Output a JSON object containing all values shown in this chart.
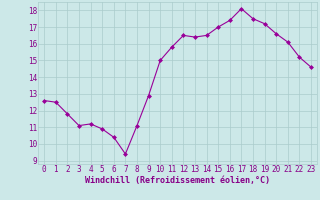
{
  "x": [
    0,
    1,
    2,
    3,
    4,
    5,
    6,
    7,
    8,
    9,
    10,
    11,
    12,
    13,
    14,
    15,
    16,
    17,
    18,
    19,
    20,
    21,
    22,
    23
  ],
  "y": [
    12.6,
    12.5,
    11.8,
    11.1,
    11.2,
    10.9,
    10.4,
    9.4,
    11.1,
    12.9,
    15.0,
    15.8,
    16.5,
    16.4,
    16.5,
    17.0,
    17.4,
    18.1,
    17.5,
    17.2,
    16.6,
    16.1,
    15.2,
    14.6
  ],
  "line_color": "#990099",
  "marker": "D",
  "marker_size": 2.0,
  "bg_color": "#cce8e8",
  "grid_color": "#aacccc",
  "xlabel": "Windchill (Refroidissement éolien,°C)",
  "xlim": [
    -0.5,
    23.5
  ],
  "ylim": [
    8.8,
    18.5
  ],
  "yticks": [
    9,
    10,
    11,
    12,
    13,
    14,
    15,
    16,
    17,
    18
  ],
  "xticks": [
    0,
    1,
    2,
    3,
    4,
    5,
    6,
    7,
    8,
    9,
    10,
    11,
    12,
    13,
    14,
    15,
    16,
    17,
    18,
    19,
    20,
    21,
    22,
    23
  ],
  "tick_label_color": "#880088",
  "xlabel_color": "#880088",
  "font_size": 5.5,
  "xlabel_fontsize": 6.0,
  "linewidth": 0.8
}
